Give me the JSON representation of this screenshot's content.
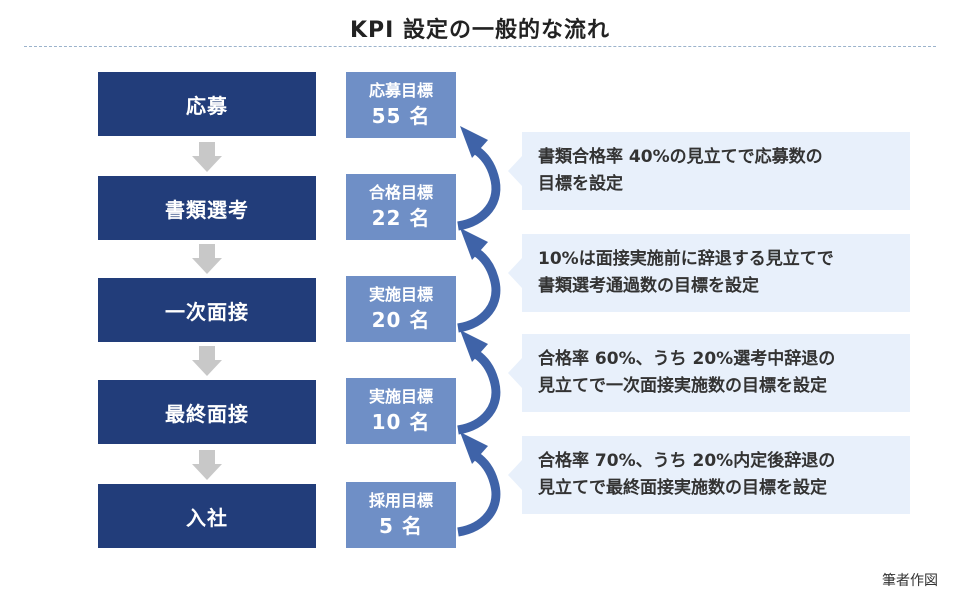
{
  "title": "KPI 設定の一般的な流れ",
  "stages": [
    {
      "label": "応募"
    },
    {
      "label": "書類選考"
    },
    {
      "label": "一次面接"
    },
    {
      "label": "最終面接"
    },
    {
      "label": "入社"
    }
  ],
  "targets": [
    {
      "label": "応募目標",
      "value": "55 名"
    },
    {
      "label": "合格目標",
      "value": "22 名"
    },
    {
      "label": "実施目標",
      "value": "20 名"
    },
    {
      "label": "実施目標",
      "value": "10 名"
    },
    {
      "label": "採用目標",
      "value": "5 名"
    }
  ],
  "notes": [
    {
      "text": "書類合格率 40%の見立てで応募数の\n目標を設定"
    },
    {
      "text": "10%は面接実施前に辞退する見立てで\n書類選考通過数の目標を設定"
    },
    {
      "text": "合格率 60%、うち 20%選考中辞退の\n見立てで一次面接実施数の目標を設定"
    },
    {
      "text": "合格率 70%、うち 20%内定後辞退の\n見立てで最終面接実施数の目標を設定"
    }
  ],
  "credit": "筆者作図",
  "colors": {
    "stage": "#223d7a",
    "target": "#6f8fc6",
    "note_bg": "#e8f0fb",
    "down_arrow": "#c8c8c8",
    "curve": "#3f63a8"
  }
}
